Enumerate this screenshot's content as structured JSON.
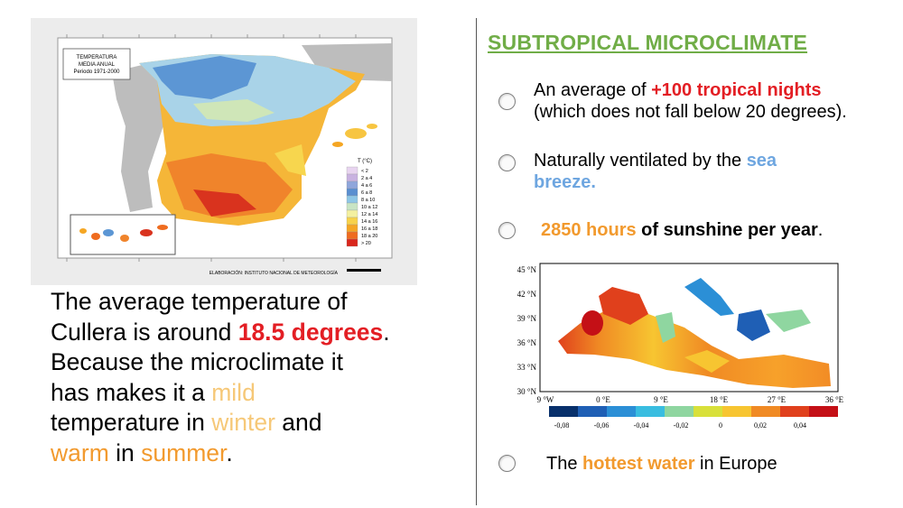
{
  "spain_map": {
    "legend_title": "TEMPERATURA\nMEDIA ANUAL\nPeriodo 1971-2000",
    "legend_unit": "T (°C)",
    "legend_classes": [
      "< 2",
      "2 a 4",
      "4 a 6",
      "6 a 8",
      "8 a 10",
      "10 a 12",
      "12 a 14",
      "14 a 16",
      "16 a 18",
      "18 a 20",
      "> 20"
    ],
    "credit": "ELABORACIÓN: INSTITUTO NACIONAL DE METEOROLOGÍA",
    "colors": [
      "#e8d4f0",
      "#c9b2e0",
      "#8fa6db",
      "#5a8fd0",
      "#8ec6e6",
      "#c8e4c4",
      "#f3f0a0",
      "#f7d24a",
      "#f5a623",
      "#ef6c1f",
      "#d9261c"
    ]
  },
  "left_paragraph": {
    "line1": "The average temperature of",
    "line2_pre": "Cullera is around ",
    "line2_value": "18.5 degrees",
    "line2_post": ".",
    "line3": "Because the microclimate it",
    "line4_pre": "has makes it a ",
    "line4_mild": "mild",
    "line5_pre": "temperature in ",
    "line5_winter": "winter",
    "line5_post": " and",
    "line6_warm": "warm",
    "line6_mid": " in ",
    "line6_summer": "summer",
    "line6_post": "."
  },
  "title": "SUBTROPICAL MICROCLIMATE",
  "bullets": {
    "b1_pre": "An average of ",
    "b1_hl": "+100 tropical nights",
    "b1_line2": "(which does not fall below 20 degrees).",
    "b2_pre": "Naturally ventilated by the ",
    "b2_hl1": "sea",
    "b2_hl2": "breeze.",
    "b3_hl": "2850 hours",
    "b3_bold": " of sunshine per year",
    "b3_post": ".",
    "b4_pre": "The ",
    "b4_hl": "hottest water",
    "b4_post": " in Europe"
  },
  "med_map": {
    "lat_labels": [
      "45 °N",
      "42 °N",
      "39 °N",
      "36 °N",
      "33 °N",
      "30 °N"
    ],
    "lon_labels": [
      "9 °W",
      "0 °E",
      "9 °E",
      "18 °E",
      "27 °E",
      "36 °E"
    ],
    "scale_labels": [
      "-0,08",
      "-0,06",
      "-0,04",
      "-0,02",
      "0",
      "0,02",
      "0,04"
    ],
    "scale_colors": [
      "#08306b",
      "#1f5fb5",
      "#2b8fd6",
      "#39bde0",
      "#8fd6a0",
      "#d8e03a",
      "#f7c531",
      "#f08a24",
      "#e0401c",
      "#c41016"
    ]
  }
}
